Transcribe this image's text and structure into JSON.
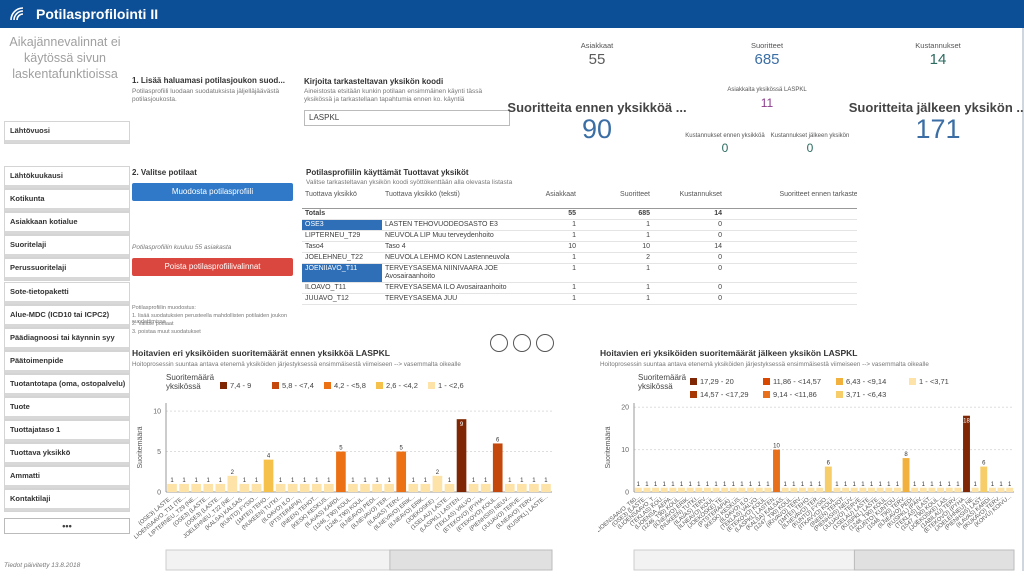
{
  "header": {
    "title": "Potilasprofilointi II"
  },
  "sidebar": {
    "note": "Aikajännevalinnat ei käytössä sivun laskentafunktioissa",
    "filters": [
      "Lähtövuosi",
      "Lähtökuukausi",
      "Kotikunta",
      "Asiakkaan kotialue",
      "Suoritelaji",
      "Perussuoritelaji",
      "Sote-tietopaketti",
      "Alue-MDC (ICD10 tai ICPC2)",
      "Päädiagnoosi tai käynnin syy",
      "Päätoimenpide",
      "Tuotantotapa (oma, ostopalvelu)",
      "Tuote",
      "Tuottajataso 1",
      "Tuottava yksikkö",
      "Ammatti",
      "Kontaktilaji"
    ],
    "more": "•••",
    "updated": "Tiedot päivitetty 13.8.2018"
  },
  "step1": {
    "title": "1. Lisää haluamasi potilasjoukon suod...",
    "text": "Potilasprofiili luodaan suodatuksista jäljelläjäävästä potilasjoukosta."
  },
  "unit_input": {
    "title": "Kirjoita tarkasteltavan yksikön koodi",
    "text": "Aineistosta etsitään kunkin potilaan ensimmäinen käynti tässä yksikössä ja tarkastellaan tapahtumia ennen ko. käyntiä",
    "value": "LASPKL"
  },
  "kpis": [
    {
      "label": "Asiakkaat",
      "value": 55
    },
    {
      "label": "Suoritteet",
      "value": 685
    },
    {
      "label": "Kustannukset",
      "value": 14
    },
    {
      "label": "Asiakkaita yksikössä LASPKL",
      "value": 11
    },
    {
      "label": "Suoritteita ennen yksikköä ...",
      "value": 90
    },
    {
      "label": "Suoritteita jälkeen yksikön ...",
      "value": 171
    },
    {
      "label": "Kustannukset ennen yksikköä",
      "value": 0
    },
    {
      "label": "Kustannukset jälkeen yksikön",
      "value": 0
    }
  ],
  "step2": {
    "title": "2. Valitse potilaat",
    "button": "Muodosta potilasprofiili",
    "count_text": "Potilasprofiilin kuuluu 55 asiakasta",
    "clear_button": "Poista potilasprofiilivalinnat",
    "notes": [
      "Potilasprofiilin muodostus:",
      "1. lisää suodatuksien perusteella mahdollisten potilaiden joukon suodattimissa",
      "2. Valitse potilaat",
      "3. poistaa muut suodatukset"
    ]
  },
  "table": {
    "title": "Potilasprofiilin käyttämät Tuottavat yksiköt",
    "subtitle": "Valitse tarkasteltavan yksikön koodi syöttökenttään alla olevasta listasta",
    "columns": [
      "Tuottava yksikkö",
      "Tuottava yksikkö (teksti)",
      "Asiakkaat",
      "Suoritteet",
      "Kustannukset",
      "Suoritteet ennen tarkasteluyksikköä"
    ],
    "totals": {
      "label": "Totals",
      "values": [
        55,
        685,
        14,
        90
      ]
    },
    "rows": [
      [
        "OSE3",
        "LASTEN TEHOVUODEOSASTO E3",
        1,
        1,
        0,
        1
      ],
      [
        "LIPTERNEU_T29",
        "NEUVOLA LIP Muu terveydenhoito",
        1,
        1,
        0,
        0
      ],
      [
        "Taso4",
        "Taso 4",
        10,
        10,
        14,
        0
      ],
      [
        "JOELEHNEU_T22",
        "NEUVOLA LEHMO KON Lastenneuvola",
        1,
        2,
        0,
        0
      ],
      [
        "JOENIIAVO_T11",
        "TERVEYSASEMA NIINIVAARA JOE Avosairaanhoito",
        1,
        1,
        0,
        1
      ],
      [
        "ILOAVO_T11",
        "TERVEYSASEMA ILO Avosairaanhoito",
        1,
        1,
        0,
        0
      ],
      [
        "JUUAVO_T12",
        "TERVEYSASEMA JUU",
        1,
        1,
        0,
        1
      ]
    ]
  },
  "chart_data": [
    {
      "type": "bar",
      "title": "Hoitavien eri yksiköiden suoritemäärät ennen yksikköä LASPKL",
      "subtitle": "Hoitoprosessin suuntaa antava etenemä yksiköiden järjestyksessä ensimmäisestä viimeiseen --> vasemmalta oikealle",
      "y_label": "Suoritemäärä",
      "legend": {
        "title": "Suoritemäärä yksikössä",
        "items": [
          {
            "label": "7,4 - 9",
            "color": "#7f2704"
          },
          {
            "label": "5,8 - <7,4",
            "color": "#c4480c"
          },
          {
            "label": "4,2 - <5,8",
            "color": "#ec7014"
          },
          {
            "label": "2,6 - <4,2",
            "color": "#f6c14a"
          },
          {
            "label": "1 - <2,6",
            "color": "#fde3a7"
          }
        ]
      },
      "categories": [
        "(OSE3) LASTE...",
        "LIOENSAAVO_T11 (TE...",
        "LIPTERNEU_T29 (NE...",
        "(OSE3) (LASTE...",
        "(OSE3) (LASTE...",
        "JOELEHNEU_T22 (NE...",
        "(KALSA) KALSAS...",
        "(KUNTO) FYSIO...",
        "(1MTEI) TEHO...",
        "(NUKEEN) TUTKI...",
        "(ILOAVO) ILO...",
        "(PTSTERAPIA) ...",
        "(INEEN) TEHOT...",
        "(KESK) KESKUS...",
        "(ILAVAS) KARDI...",
        "(1246_T90) KOUL...",
        "(1248_T90) KOUL...",
        "(ILNEAVO) PEDI...",
        "(ILNEVAVO) TER...",
        "(ILAVAS) TERV...",
        "(ILNEVAVO) ERIK...",
        "(ILNEAVO) ERIK...",
        "(JOEKOSKE) ...",
        "(1SELAU) LASTE...",
        "(LASPKL) LASTEN...",
        "(TEKLAS) VALVO...",
        "(ETEKOVO) (PYHA...",
        "(ETEKOVO) KOUL...",
        "(PIENHSIS) NEUV...",
        "(JUUAVO) TERVE...",
        "(ILNEAVO) TERV...",
        "(KUSPKL) LASTE..."
      ],
      "values": [
        1,
        1,
        1,
        1,
        1,
        2,
        1,
        1,
        4,
        1,
        1,
        1,
        1,
        1,
        5,
        1,
        1,
        1,
        1,
        5,
        1,
        1,
        2,
        1,
        9,
        1,
        1,
        6,
        1,
        1,
        1,
        1
      ],
      "colors": [
        "#fde3a7",
        "#fde3a7",
        "#fde3a7",
        "#fde3a7",
        "#fde3a7",
        "#fde3a7",
        "#fde3a7",
        "#fde3a7",
        "#f6c14a",
        "#fde3a7",
        "#fde3a7",
        "#fde3a7",
        "#fde3a7",
        "#fde3a7",
        "#ec7014",
        "#fde3a7",
        "#fde3a7",
        "#fde3a7",
        "#fde3a7",
        "#ec7014",
        "#fde3a7",
        "#fde3a7",
        "#fde3a7",
        "#fde3a7",
        "#7f2704",
        "#fde3a7",
        "#fde3a7",
        "#c4480c",
        "#fde3a7",
        "#fde3a7",
        "#fde3a7",
        "#fde3a7"
      ],
      "ylim": [
        0,
        11
      ],
      "yticks": [
        0,
        5,
        10
      ],
      "grid": true
    },
    {
      "type": "bar",
      "title": "Hoitavien eri yksiköiden suoritemäärät jälkeen yksikön LASPKL",
      "subtitle": "Hoitoprosessin suuntaa antava etenemä yksiköiden järjestyksessä ensimmäisestä viimeiseen --> vasemmalta oikealle",
      "y_label": "Suoritemäärä",
      "legend": {
        "title": "Suoritemäärä yksikössä",
        "items": [
          {
            "label": "17,29 - 20",
            "color": "#7f2704"
          },
          {
            "label": "11,86 - <14,57",
            "color": "#d94801"
          },
          {
            "label": "6,43 - <9,14",
            "color": "#f2b13c"
          },
          {
            "label": "1 - <3,71",
            "color": "#fde3a7"
          },
          {
            "label": "14,57 - <17,29",
            "color": "#a63603"
          },
          {
            "label": "9,14 - <11,86",
            "color": "#e8701a"
          },
          {
            "label": "3,71 - <6,43",
            "color": "#f7cd6a"
          }
        ]
      },
      "categories": [
        "LIOENSAAVO_T60...",
        "(OSE3) (LASTE...",
        "(LIOENSAAVO_T...",
        "(TEKLAS) KOU...",
        "(LIOENSA_AEPA...",
        "(1246_T90) KOUL...",
        "(ILNEAVO) ERIK...",
        "(NUKEEN) TUTKI...",
        "(ILAVAS) TERV...",
        "(ILNEAVO) KOUL...",
        "(JOEKOSKE) TE...",
        "(PTSTERAPIA) ...",
        "(KESK) KESKUS...",
        "(ILOAVO) ILO...",
        "(TEKLAS) VALVO...",
        "(ETEKOVO) KOUL...",
        "(LASPKL) LASTEN...",
        "(KALSA) KALSAS...",
        "(1247_T90) KOUL...",
        "(IKIVAVO) TERV...",
        "(1MTEI) TEHO...",
        "(ILNEVAVO) TER...",
        "(KUNTO) FYSIO...",
        "(ITKAVVO) KOUL...",
        "(INEEN) TEHOT...",
        "(PIENHSIS) NEUV...",
        "(JUUAVO) TERVE...",
        "(1SELAU) LASTE...",
        "(KUSPKL) LASTE...",
        "(1248_T90) KOUL...",
        "(KUNTO) KUNTOU...",
        "(1546_T90) TERV...",
        "(ILNEAVO) PEDI...",
        "(KUSPKL) (PÄIV...",
        "(TEKLAS) (LAST...",
        "(1547_T90) KOUL...",
        "(JOEKOSKE) LAS...",
        "(1ABILAU) TERV...",
        "(ETEKOVO) (PYHA...",
        "(JOELEHNEU) NE...",
        "(PIENHSIS) LAST...",
        "(ILAVAS) KARDI...",
        "(IKUKAVO) TERV...",
        "(KOIVU) KOIVU..."
      ],
      "values": [
        1,
        1,
        1,
        1,
        1,
        1,
        1,
        1,
        1,
        1,
        1,
        1,
        1,
        1,
        1,
        1,
        10,
        1,
        1,
        1,
        1,
        1,
        6,
        1,
        1,
        1,
        1,
        1,
        1,
        1,
        1,
        8,
        1,
        1,
        1,
        1,
        1,
        1,
        18,
        1,
        6,
        1,
        1,
        1
      ],
      "colors": [
        "#fde3a7",
        "#fde3a7",
        "#fde3a7",
        "#fde3a7",
        "#fde3a7",
        "#fde3a7",
        "#fde3a7",
        "#fde3a7",
        "#fde3a7",
        "#fde3a7",
        "#fde3a7",
        "#fde3a7",
        "#fde3a7",
        "#fde3a7",
        "#fde3a7",
        "#fde3a7",
        "#e8701a",
        "#fde3a7",
        "#fde3a7",
        "#fde3a7",
        "#fde3a7",
        "#fde3a7",
        "#f7cd6a",
        "#fde3a7",
        "#fde3a7",
        "#fde3a7",
        "#fde3a7",
        "#fde3a7",
        "#fde3a7",
        "#fde3a7",
        "#fde3a7",
        "#f2b13c",
        "#fde3a7",
        "#fde3a7",
        "#fde3a7",
        "#fde3a7",
        "#fde3a7",
        "#fde3a7",
        "#7f2704",
        "#fde3a7",
        "#f7cd6a",
        "#fde3a7",
        "#fde3a7",
        "#fde3a7"
      ],
      "ylim": [
        0,
        21
      ],
      "yticks": [
        0,
        10,
        20
      ],
      "grid": true
    }
  ]
}
